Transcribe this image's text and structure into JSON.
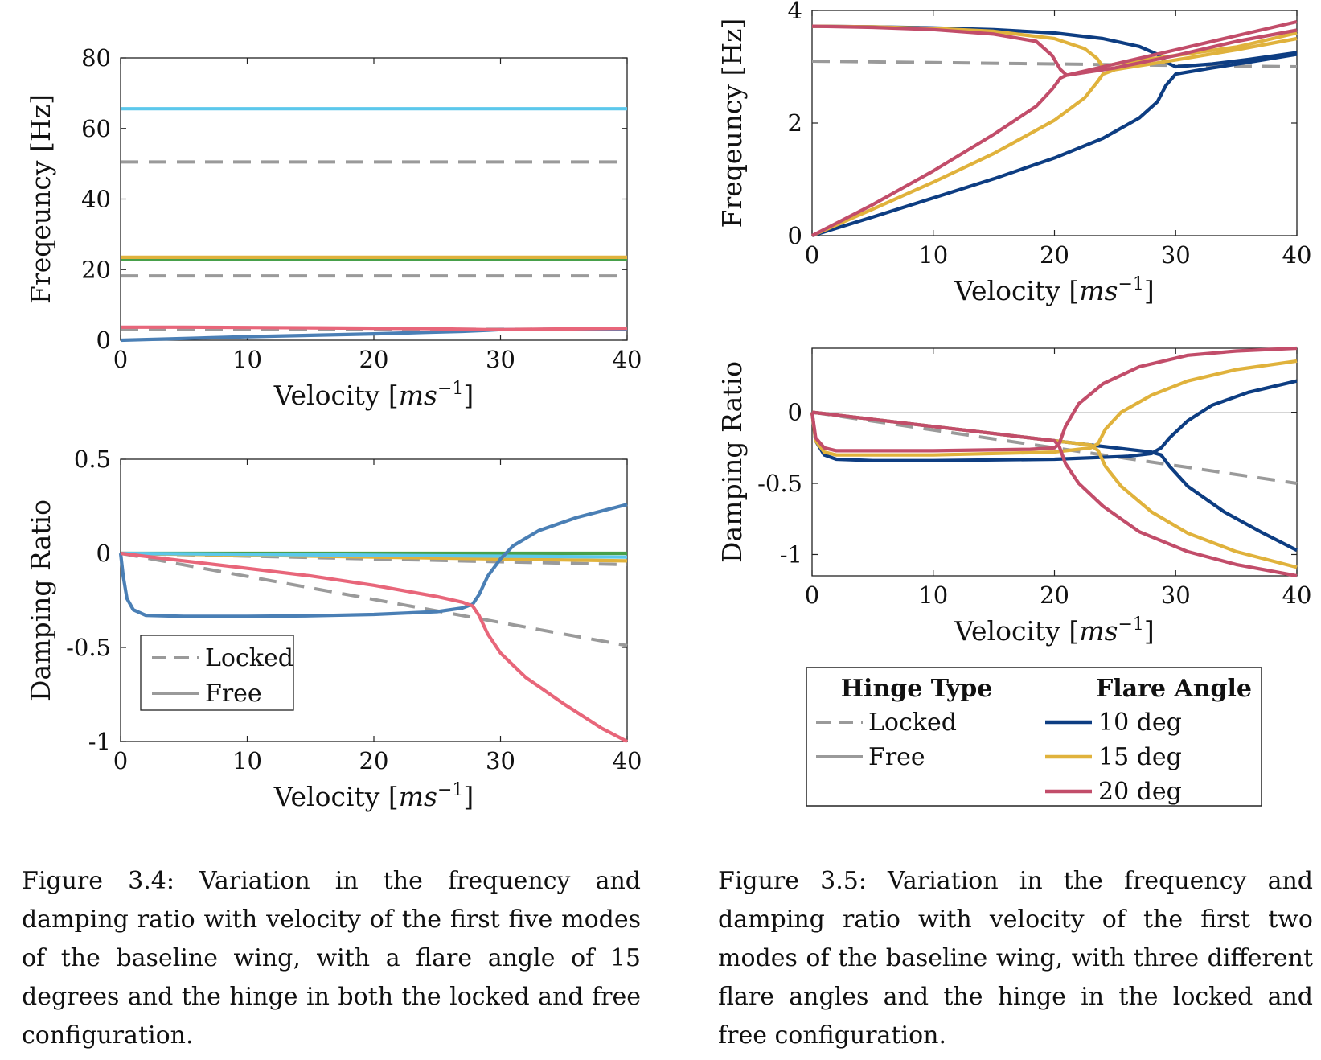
{
  "chart_data": [
    {
      "type": "line",
      "id": "a",
      "xlabel": "Velocity [ms^-1]",
      "ylabel": "Freqeuncy [Hz]",
      "xlim": [
        0,
        40
      ],
      "ylim": [
        0,
        80
      ],
      "x_ticks": [
        0,
        10,
        20,
        30,
        40
      ],
      "y_ticks": [
        0,
        20,
        40,
        60,
        80
      ],
      "y_tick_labels": [
        "0",
        "20",
        "40",
        "60",
        "80"
      ],
      "grid": false,
      "series": [
        {
          "color": "#9a9a9a",
          "dashed": true,
          "x": [
            0,
            40
          ],
          "y": [
            50.5,
            50.5
          ]
        },
        {
          "color": "#9a9a9a",
          "dashed": true,
          "x": [
            0,
            40
          ],
          "y": [
            18.2,
            18.2
          ]
        },
        {
          "color": "#9a9a9a",
          "dashed": true,
          "x": [
            0,
            40
          ],
          "y": [
            3.1,
            3.1
          ]
        },
        {
          "color": "#5cc8ec",
          "x": [
            0,
            40
          ],
          "y": [
            65.6,
            65.6
          ]
        },
        {
          "color": "#48a04a",
          "x": [
            0,
            40
          ],
          "y": [
            23.0,
            23.0
          ]
        },
        {
          "color": "#e0b23c",
          "x": [
            0,
            40
          ],
          "y": [
            23.5,
            23.5
          ]
        },
        {
          "color": "#4a7fb5",
          "x": [
            0,
            5,
            10,
            15,
            20,
            24,
            27,
            29,
            30,
            35,
            40
          ],
          "y": [
            0,
            0.5,
            1.0,
            1.4,
            1.8,
            2.2,
            2.5,
            2.8,
            3.0,
            3.1,
            3.2
          ]
        },
        {
          "color": "#e8667a",
          "x": [
            0,
            5,
            10,
            15,
            20,
            24,
            27,
            29,
            30,
            35,
            40
          ],
          "y": [
            3.7,
            3.7,
            3.6,
            3.5,
            3.4,
            3.3,
            3.1,
            3.0,
            3.0,
            3.2,
            3.4
          ]
        }
      ],
      "legend": null
    },
    {
      "type": "line",
      "id": "b",
      "xlabel": "Velocity [ms^-1]",
      "ylabel": "Damping Ratio",
      "xlim": [
        0,
        40
      ],
      "ylim": [
        -1,
        0.5
      ],
      "x_ticks": [
        0,
        10,
        20,
        30,
        40
      ],
      "y_ticks": [
        -1,
        -0.5,
        0,
        0.5
      ],
      "y_tick_labels": [
        "-1",
        "-0.5",
        "0",
        "0.5"
      ],
      "grid": false,
      "series": [
        {
          "color": "#9a9a9a",
          "dashed": true,
          "x": [
            0,
            40
          ],
          "y": [
            0,
            -0.49
          ]
        },
        {
          "color": "#9a9a9a",
          "dashed": true,
          "x": [
            0,
            40
          ],
          "y": [
            0,
            -0.06
          ]
        },
        {
          "color": "#48a04a",
          "x": [
            0,
            40
          ],
          "y": [
            0,
            0.0
          ]
        },
        {
          "color": "#e0b23c",
          "x": [
            0,
            10,
            20,
            30,
            40
          ],
          "y": [
            0,
            -0.01,
            -0.02,
            -0.03,
            -0.04
          ]
        },
        {
          "color": "#5cc8ec",
          "x": [
            0,
            40
          ],
          "y": [
            0,
            -0.02
          ]
        },
        {
          "color": "#4a7fb5",
          "x": [
            0,
            0.2,
            0.5,
            1,
            2,
            5,
            10,
            15,
            20,
            25,
            27,
            27.8,
            28.3,
            29,
            30,
            31,
            33,
            36,
            40
          ],
          "y": [
            0,
            -0.12,
            -0.24,
            -0.3,
            -0.33,
            -0.335,
            -0.335,
            -0.332,
            -0.325,
            -0.31,
            -0.29,
            -0.27,
            -0.22,
            -0.12,
            -0.03,
            0.04,
            0.12,
            0.19,
            0.26
          ]
        },
        {
          "color": "#e8667a",
          "x": [
            0,
            5,
            10,
            15,
            20,
            25,
            27,
            27.8,
            28.3,
            29,
            30,
            32,
            35,
            38,
            40
          ],
          "y": [
            0,
            -0.04,
            -0.08,
            -0.12,
            -0.17,
            -0.23,
            -0.26,
            -0.28,
            -0.33,
            -0.43,
            -0.53,
            -0.66,
            -0.8,
            -0.93,
            -1.0
          ]
        }
      ],
      "legend": {
        "placement": "bottom-left",
        "entries": [
          {
            "label": "Locked",
            "color": "#9a9a9a",
            "dashed": true
          },
          {
            "label": "Free",
            "color": "#9a9a9a",
            "dashed": false
          }
        ]
      }
    },
    {
      "type": "line",
      "id": "c",
      "xlabel": "Velocity [ms^-1]",
      "ylabel": "Freqeuncy [Hz]",
      "xlim": [
        0,
        40
      ],
      "ylim": [
        0,
        4
      ],
      "x_ticks": [
        0,
        10,
        20,
        30,
        40
      ],
      "y_ticks": [
        0,
        2,
        4
      ],
      "y_tick_labels": [
        "0",
        "2",
        "4"
      ],
      "grid": false,
      "series": [
        {
          "color": "#9a9a9a",
          "dashed": true,
          "x": [
            0,
            40
          ],
          "y": [
            3.1,
            3.0
          ]
        },
        {
          "color": "#0d3d82",
          "x": [
            0,
            5,
            10,
            15,
            20,
            24,
            27,
            28.5,
            29.2,
            30,
            33,
            36,
            40
          ],
          "y": [
            3.72,
            3.71,
            3.69,
            3.66,
            3.6,
            3.5,
            3.36,
            3.22,
            3.08,
            3.0,
            3.05,
            3.13,
            3.25
          ]
        },
        {
          "color": "#0d3d82",
          "x": [
            0,
            5,
            10,
            15,
            20,
            24,
            27,
            28.5,
            29.2,
            30,
            33,
            36,
            40
          ],
          "y": [
            0,
            0.33,
            0.67,
            1.01,
            1.38,
            1.73,
            2.09,
            2.38,
            2.67,
            2.87,
            2.98,
            3.08,
            3.22
          ]
        },
        {
          "color": "#e0b23c",
          "x": [
            0,
            5,
            10,
            15,
            20,
            22.5,
            23.5,
            24,
            25,
            30,
            35,
            40
          ],
          "y": [
            3.72,
            3.71,
            3.68,
            3.63,
            3.5,
            3.32,
            3.15,
            3.0,
            3.05,
            3.2,
            3.35,
            3.6
          ]
        },
        {
          "color": "#e0b23c",
          "x": [
            0,
            5,
            10,
            15,
            20,
            22.5,
            23.5,
            24,
            25,
            30,
            35,
            40
          ],
          "y": [
            0,
            0.47,
            0.95,
            1.46,
            2.05,
            2.45,
            2.72,
            2.87,
            2.95,
            3.12,
            3.3,
            3.5
          ]
        },
        {
          "color": "#c24d6a",
          "x": [
            0,
            5,
            10,
            15,
            18.5,
            19.8,
            20.5,
            21,
            25,
            30,
            35,
            40
          ],
          "y": [
            3.72,
            3.7,
            3.66,
            3.58,
            3.45,
            3.2,
            2.95,
            2.85,
            2.98,
            3.2,
            3.45,
            3.65
          ]
        },
        {
          "color": "#c24d6a",
          "x": [
            0,
            5,
            10,
            15,
            18.5,
            19.8,
            20.5,
            21,
            25,
            30,
            35,
            40
          ],
          "y": [
            0,
            0.55,
            1.15,
            1.8,
            2.3,
            2.6,
            2.8,
            2.85,
            3.05,
            3.3,
            3.55,
            3.8
          ]
        }
      ],
      "legend": null
    },
    {
      "type": "line",
      "id": "d",
      "xlabel": "Velocity [ms^-1]",
      "ylabel": "Damping Ratio",
      "xlim": [
        0,
        40
      ],
      "ylim": [
        -1.15,
        0.45
      ],
      "x_ticks": [
        0,
        10,
        20,
        30,
        40
      ],
      "y_ticks": [
        -1,
        -0.5,
        0
      ],
      "y_tick_labels": [
        "-1",
        "-0.5",
        "0"
      ],
      "grid": false,
      "zero_line": true,
      "series": [
        {
          "color": "#9a9a9a",
          "dashed": true,
          "x": [
            0,
            40
          ],
          "y": [
            0,
            -0.5
          ]
        },
        {
          "color": "#0d3d82",
          "x": [
            0,
            0.3,
            1,
            2,
            5,
            10,
            20,
            26,
            28,
            28.8,
            29.5,
            31,
            33,
            36,
            40
          ],
          "y": [
            0,
            -0.2,
            -0.3,
            -0.33,
            -0.34,
            -0.34,
            -0.33,
            -0.31,
            -0.29,
            -0.25,
            -0.18,
            -0.06,
            0.05,
            0.14,
            0.22
          ]
        },
        {
          "color": "#0d3d82",
          "x": [
            0,
            5,
            10,
            15,
            20,
            25,
            28,
            28.8,
            29.5,
            31,
            34,
            37,
            40
          ],
          "y": [
            0,
            -0.05,
            -0.1,
            -0.15,
            -0.2,
            -0.25,
            -0.28,
            -0.3,
            -0.38,
            -0.52,
            -0.7,
            -0.84,
            -0.97
          ]
        },
        {
          "color": "#e0b23c",
          "x": [
            0,
            0.3,
            1,
            2,
            5,
            10,
            20,
            23,
            23.6,
            24.2,
            25.5,
            28,
            31,
            35,
            40
          ],
          "y": [
            0,
            -0.2,
            -0.28,
            -0.3,
            -0.3,
            -0.3,
            -0.28,
            -0.25,
            -0.22,
            -0.12,
            0.0,
            0.12,
            0.22,
            0.3,
            0.36
          ]
        },
        {
          "color": "#e0b23c",
          "x": [
            0,
            5,
            10,
            15,
            20,
            23,
            23.6,
            24.2,
            25.5,
            28,
            31,
            35,
            40
          ],
          "y": [
            0,
            -0.05,
            -0.1,
            -0.15,
            -0.2,
            -0.23,
            -0.27,
            -0.38,
            -0.52,
            -0.7,
            -0.85,
            -0.98,
            -1.09
          ]
        },
        {
          "color": "#c24d6a",
          "x": [
            0,
            0.3,
            1,
            2,
            5,
            10,
            18,
            20,
            20.4,
            20.9,
            22,
            24,
            27,
            31,
            35,
            40
          ],
          "y": [
            0,
            -0.18,
            -0.25,
            -0.27,
            -0.27,
            -0.27,
            -0.26,
            -0.25,
            -0.22,
            -0.1,
            0.06,
            0.2,
            0.32,
            0.4,
            0.43,
            0.45
          ]
        },
        {
          "color": "#c24d6a",
          "x": [
            0,
            5,
            10,
            15,
            20,
            20.4,
            20.9,
            22,
            24,
            27,
            31,
            35,
            40
          ],
          "y": [
            0,
            -0.05,
            -0.1,
            -0.15,
            -0.2,
            -0.24,
            -0.36,
            -0.5,
            -0.66,
            -0.84,
            -0.98,
            -1.07,
            -1.15
          ]
        }
      ],
      "legend": null
    }
  ],
  "legend_right": {
    "hinge_header": "Hinge Type",
    "flare_header": "Flare Angle",
    "hinge_entries": [
      {
        "label": "Locked",
        "color": "#9a9a9a",
        "dashed": true
      },
      {
        "label": "Free",
        "color": "#9a9a9a",
        "dashed": false
      }
    ],
    "flare_entries": [
      {
        "label": "10 deg",
        "color": "#0d3d82"
      },
      {
        "label": "15 deg",
        "color": "#e0b23c"
      },
      {
        "label": "20 deg",
        "color": "#c24d6a"
      }
    ]
  },
  "captions": {
    "left": "Figure 3.4: Variation in the frequency and damping ratio with velocity of the first five modes of the baseline wing, with a flare angle of 15 degrees and the hinge in both the locked and free configuration.",
    "right": "Figure 3.5: Variation in the frequency and damping ratio with velocity of the first two modes of the baseline wing, with three different flare angles and the hinge in the locked and free configuration."
  }
}
